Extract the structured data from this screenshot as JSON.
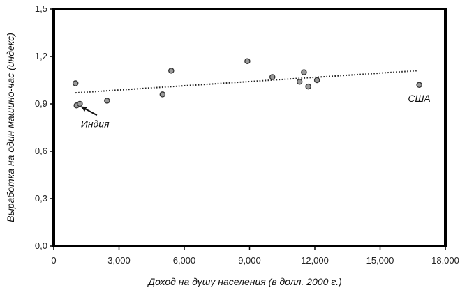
{
  "chart_data": {
    "type": "scatter",
    "title": "",
    "xlabel": "Доход на душу населения (в долл. 2000 г.)",
    "ylabel": "Выработка на один машино-час (индекс)",
    "xlim": [
      0,
      18000
    ],
    "ylim": [
      0,
      1.5
    ],
    "x_ticks": [
      0,
      3000,
      6000,
      9000,
      12000,
      15000,
      18000
    ],
    "x_tick_labels": [
      "0",
      "3,000",
      "6,000",
      "9,000",
      "12,000",
      "15,000",
      "18,000"
    ],
    "y_ticks": [
      0,
      0.3,
      0.6,
      0.9,
      1.2,
      1.5
    ],
    "y_tick_labels": [
      "0,0",
      "0,3",
      "0,6",
      "0,9",
      "1,2",
      "1,5"
    ],
    "grid": false,
    "legend": "none",
    "points": [
      {
        "x": 1000,
        "y": 1.03
      },
      {
        "x": 1050,
        "y": 0.89
      },
      {
        "x": 1200,
        "y": 0.9
      },
      {
        "x": 2450,
        "y": 0.92
      },
      {
        "x": 5000,
        "y": 0.96
      },
      {
        "x": 5400,
        "y": 1.11
      },
      {
        "x": 8900,
        "y": 1.17
      },
      {
        "x": 10050,
        "y": 1.07
      },
      {
        "x": 11300,
        "y": 1.04
      },
      {
        "x": 11500,
        "y": 1.1
      },
      {
        "x": 11700,
        "y": 1.01
      },
      {
        "x": 12100,
        "y": 1.05
      },
      {
        "x": 16800,
        "y": 1.02
      }
    ],
    "trendline": {
      "style": "dotted",
      "x": [
        1000,
        16700
      ],
      "y": [
        0.97,
        1.11
      ]
    },
    "annotations": [
      {
        "text": "Индия",
        "x": 1150,
        "y": 0.89,
        "arrow": true
      },
      {
        "text": "США",
        "x": 16800,
        "y": 1.02,
        "arrow": false
      }
    ],
    "colors": {
      "marker_fill": "#9a9a9a",
      "marker_stroke": "#333333",
      "frame": "#000000",
      "trendline": "#222222"
    }
  }
}
